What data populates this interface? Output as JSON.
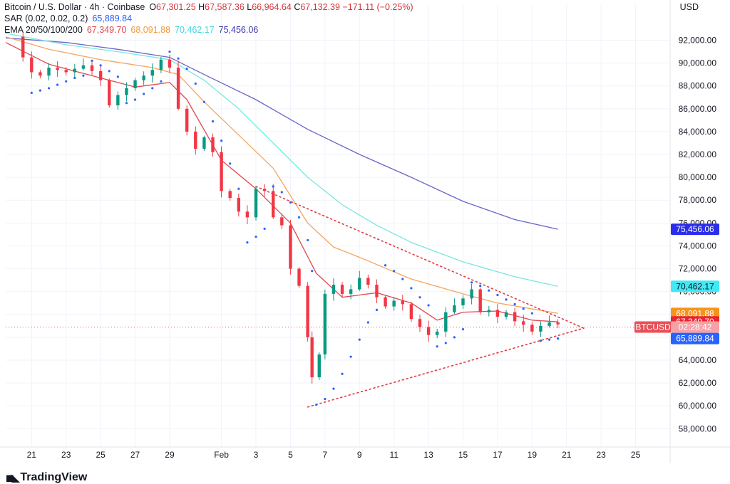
{
  "legend": {
    "title": "Bitcoin / U.S. Dollar · 4h · Coinbase",
    "o_label": "O",
    "o": "67,301.25",
    "h_label": "H",
    "h": "67,587.36",
    "l_label": "L",
    "l": "66,964.64",
    "c_label": "C",
    "c": "67,132.39",
    "change": "−171.11 (−0.25%)",
    "sar_label": "SAR (0.02, 0.02, 0.2)",
    "sar_value": "65,889.84",
    "ema_label": "EMA 20/50/100/200",
    "ema20": "67,349.70",
    "ema50": "68,091.88",
    "ema100": "70,462.17",
    "ema200": "75,456.06"
  },
  "currency": "USD",
  "brand": "TradingView",
  "colors": {
    "up": "#089981",
    "down": "#f23645",
    "sar": "#2962ff",
    "ema20": "#e0474c",
    "ema50": "#f5a55f",
    "ema100": "#78e6e0",
    "ema200": "#6a64c9",
    "triangle": "#e23b43",
    "last_price": "#e84f57"
  },
  "chart_data": {
    "type": "candlestick",
    "symbol": "BTCUSD",
    "timeframe": "4h",
    "x_axis": {
      "ticks": [
        {
          "label": "21",
          "date": "2024-01-21"
        },
        {
          "label": "23",
          "date": "2024-01-23"
        },
        {
          "label": "25",
          "date": "2024-01-25"
        },
        {
          "label": "27",
          "date": "2024-01-27"
        },
        {
          "label": "29",
          "date": "2024-01-29"
        },
        {
          "label": "Feb",
          "date": "2024-02-01"
        },
        {
          "label": "3",
          "date": "2024-02-03"
        },
        {
          "label": "5",
          "date": "2024-02-05"
        },
        {
          "label": "7",
          "date": "2024-02-07"
        },
        {
          "label": "9",
          "date": "2024-02-09"
        },
        {
          "label": "11",
          "date": "2024-02-11"
        },
        {
          "label": "13",
          "date": "2024-02-13"
        },
        {
          "label": "15",
          "date": "2024-02-15"
        },
        {
          "label": "17",
          "date": "2024-02-17"
        },
        {
          "label": "19",
          "date": "2024-02-19"
        },
        {
          "label": "21",
          "date": "2024-02-21"
        },
        {
          "label": "23",
          "date": "2024-02-23"
        },
        {
          "label": "25",
          "date": "2024-02-25"
        }
      ],
      "range": [
        "2024-01-19T12:00",
        "2024-02-27T00:00"
      ]
    },
    "y_axis": {
      "ticks": [
        "58,000.00",
        "60,000.00",
        "62,000.00",
        "64,000.00",
        "66,000.00",
        "68,000.00",
        "70,000.00",
        "72,000.00",
        "74,000.00",
        "76,000.00",
        "78,000.00",
        "80,000.00",
        "82,000.00",
        "84,000.00",
        "86,000.00",
        "88,000.00",
        "90,000.00",
        "92,000.00"
      ],
      "ylim": [
        56400,
        93900
      ]
    },
    "closes": [
      [
        "2024-01-19T16:00",
        92300
      ],
      [
        "2024-01-20T12:00",
        90500
      ],
      [
        "2024-01-21T00:00",
        89200
      ],
      [
        "2024-01-21T12:00",
        88900
      ],
      [
        "2024-01-22T00:00",
        89600
      ],
      [
        "2024-01-22T12:00",
        89400
      ],
      [
        "2024-01-23T00:00",
        89200
      ],
      [
        "2024-01-23T12:00",
        89500
      ],
      [
        "2024-01-24T00:00",
        89800
      ],
      [
        "2024-01-24T12:00",
        89300
      ],
      [
        "2024-01-25T00:00",
        88500
      ],
      [
        "2024-01-25T12:00",
        86300
      ],
      [
        "2024-01-26T00:00",
        87200
      ],
      [
        "2024-01-26T12:00",
        87800
      ],
      [
        "2024-01-27T00:00",
        88500
      ],
      [
        "2024-01-27T12:00",
        88900
      ],
      [
        "2024-01-28T00:00",
        89400
      ],
      [
        "2024-01-28T12:00",
        90300
      ],
      [
        "2024-01-29T00:00",
        89600
      ],
      [
        "2024-01-29T12:00",
        86000
      ],
      [
        "2024-01-30T00:00",
        84000
      ],
      [
        "2024-01-30T12:00",
        82500
      ],
      [
        "2024-01-31T00:00",
        83500
      ],
      [
        "2024-01-31T12:00",
        82200
      ],
      [
        "2024-02-01T00:00",
        78800
      ],
      [
        "2024-02-01T12:00",
        78200
      ],
      [
        "2024-02-02T00:00",
        77000
      ],
      [
        "2024-02-02T12:00",
        76500
      ],
      [
        "2024-02-03T00:00",
        79000
      ],
      [
        "2024-02-03T12:00",
        78800
      ],
      [
        "2024-02-04T00:00",
        76500
      ],
      [
        "2024-02-04T12:00",
        75800
      ],
      [
        "2024-02-05T00:00",
        72000
      ],
      [
        "2024-02-05T12:00",
        70500
      ],
      [
        "2024-02-06T00:00",
        66000
      ],
      [
        "2024-02-06T06:00",
        62500
      ],
      [
        "2024-02-06T16:00",
        64500
      ],
      [
        "2024-02-07T00:00",
        69800
      ],
      [
        "2024-02-07T12:00",
        70600
      ],
      [
        "2024-02-08T00:00",
        69800
      ],
      [
        "2024-02-08T12:00",
        70200
      ],
      [
        "2024-02-09T00:00",
        71200
      ],
      [
        "2024-02-09T12:00",
        70600
      ],
      [
        "2024-02-10T00:00",
        69500
      ],
      [
        "2024-02-10T12:00",
        68700
      ],
      [
        "2024-02-11T00:00",
        69200
      ],
      [
        "2024-02-11T12:00",
        68900
      ],
      [
        "2024-02-12T00:00",
        67600
      ],
      [
        "2024-02-12T12:00",
        66900
      ],
      [
        "2024-02-13T00:00",
        66200
      ],
      [
        "2024-02-13T12:00",
        66500
      ],
      [
        "2024-02-14T00:00",
        68200
      ],
      [
        "2024-02-14T12:00",
        68800
      ],
      [
        "2024-02-15T00:00",
        69400
      ],
      [
        "2024-02-15T12:00",
        70200
      ],
      [
        "2024-02-16T00:00",
        68200
      ],
      [
        "2024-02-16T12:00",
        68400
      ],
      [
        "2024-02-17T00:00",
        67800
      ],
      [
        "2024-02-17T12:00",
        68200
      ],
      [
        "2024-02-18T00:00",
        67400
      ],
      [
        "2024-02-18T12:00",
        67100
      ],
      [
        "2024-02-19T00:00",
        66500
      ],
      [
        "2024-02-19T12:00",
        67000
      ],
      [
        "2024-02-20T00:00",
        67300
      ],
      [
        "2024-02-20T12:00",
        67132
      ]
    ],
    "ema20": [
      [
        "2024-01-19T12:00",
        91800
      ],
      [
        "2024-01-22T00:00",
        89900
      ],
      [
        "2024-01-25T00:00",
        88700
      ],
      [
        "2024-01-27T00:00",
        87900
      ],
      [
        "2024-01-29T00:00",
        88300
      ],
      [
        "2024-01-30T00:00",
        86800
      ],
      [
        "2024-02-01T00:00",
        81500
      ],
      [
        "2024-02-03T00:00",
        79000
      ],
      [
        "2024-02-05T00:00",
        76000
      ],
      [
        "2024-02-06T12:00",
        71600
      ],
      [
        "2024-02-08T00:00",
        69500
      ],
      [
        "2024-02-10T00:00",
        69900
      ],
      [
        "2024-02-12T00:00",
        69000
      ],
      [
        "2024-02-13T12:00",
        67500
      ],
      [
        "2024-02-15T00:00",
        68200
      ],
      [
        "2024-02-17T00:00",
        68300
      ],
      [
        "2024-02-19T00:00",
        67500
      ],
      [
        "2024-02-20T12:00",
        67350
      ]
    ],
    "ema50": [
      [
        "2024-01-19T12:00",
        92300
      ],
      [
        "2024-01-22T00:00",
        91200
      ],
      [
        "2024-01-25T00:00",
        90300
      ],
      [
        "2024-01-28T00:00",
        89600
      ],
      [
        "2024-01-29T12:00",
        89000
      ],
      [
        "2024-01-31T00:00",
        86600
      ],
      [
        "2024-02-02T00:00",
        83700
      ],
      [
        "2024-02-04T00:00",
        80800
      ],
      [
        "2024-02-06T00:00",
        76000
      ],
      [
        "2024-02-07T12:00",
        73900
      ],
      [
        "2024-02-09T00:00",
        73000
      ],
      [
        "2024-02-12T00:00",
        71100
      ],
      [
        "2024-02-15T00:00",
        69800
      ],
      [
        "2024-02-17T00:00",
        69000
      ],
      [
        "2024-02-20T12:00",
        68100
      ]
    ],
    "ema100": [
      [
        "2024-01-19T12:00",
        92600
      ],
      [
        "2024-01-23T00:00",
        91600
      ],
      [
        "2024-01-26T00:00",
        91000
      ],
      [
        "2024-01-29T00:00",
        90300
      ],
      [
        "2024-01-31T00:00",
        88500
      ],
      [
        "2024-02-02T00:00",
        86000
      ],
      [
        "2024-02-04T00:00",
        83000
      ],
      [
        "2024-02-06T00:00",
        80000
      ],
      [
        "2024-02-08T00:00",
        77600
      ],
      [
        "2024-02-10T00:00",
        75800
      ],
      [
        "2024-02-12T00:00",
        74300
      ],
      [
        "2024-02-15T00:00",
        72600
      ],
      [
        "2024-02-18T00:00",
        71300
      ],
      [
        "2024-02-20T12:00",
        70460
      ]
    ],
    "ema200": [
      [
        "2024-01-19T12:00",
        92200
      ],
      [
        "2024-01-23T00:00",
        91800
      ],
      [
        "2024-01-26T00:00",
        91200
      ],
      [
        "2024-01-29T00:00",
        90500
      ],
      [
        "2024-01-31T00:00",
        89000
      ],
      [
        "2024-02-03T00:00",
        86800
      ],
      [
        "2024-02-06T00:00",
        84200
      ],
      [
        "2024-02-09T00:00",
        82000
      ],
      [
        "2024-02-12T00:00",
        80000
      ],
      [
        "2024-02-15T00:00",
        77900
      ],
      [
        "2024-02-18T00:00",
        76300
      ],
      [
        "2024-02-20T12:00",
        75456
      ]
    ],
    "sar": [
      [
        "2024-01-21T00:00",
        87400
      ],
      [
        "2024-01-21T12:00",
        87600
      ],
      [
        "2024-01-22T00:00",
        87800
      ],
      [
        "2024-01-22T12:00",
        88100
      ],
      [
        "2024-01-23T00:00",
        88400
      ],
      [
        "2024-01-23T12:00",
        88700
      ],
      [
        "2024-01-24T00:00",
        88900
      ],
      [
        "2024-01-24T12:00",
        90200
      ],
      [
        "2024-01-25T00:00",
        89800
      ],
      [
        "2024-01-25T12:00",
        89300
      ],
      [
        "2024-01-26T00:00",
        88800
      ],
      [
        "2024-01-26T12:00",
        86500
      ],
      [
        "2024-01-27T00:00",
        86800
      ],
      [
        "2024-01-27T12:00",
        87300
      ],
      [
        "2024-01-28T00:00",
        87800
      ],
      [
        "2024-01-28T12:00",
        88400
      ],
      [
        "2024-01-29T00:00",
        91000
      ],
      [
        "2024-01-29T12:00",
        90400
      ],
      [
        "2024-01-30T00:00",
        89500
      ],
      [
        "2024-01-30T12:00",
        88200
      ],
      [
        "2024-01-31T00:00",
        86600
      ],
      [
        "2024-01-31T12:00",
        84900
      ],
      [
        "2024-02-01T00:00",
        83200
      ],
      [
        "2024-02-01T12:00",
        81200
      ],
      [
        "2024-02-02T00:00",
        79000
      ],
      [
        "2024-02-02T12:00",
        74300
      ],
      [
        "2024-02-03T00:00",
        74800
      ],
      [
        "2024-02-03T12:00",
        75500
      ],
      [
        "2024-02-04T00:00",
        79200
      ],
      [
        "2024-02-04T12:00",
        78700
      ],
      [
        "2024-02-05T00:00",
        77800
      ],
      [
        "2024-02-05T12:00",
        76500
      ],
      [
        "2024-02-06T00:00",
        74500
      ],
      [
        "2024-02-06T06:00",
        71800
      ],
      [
        "2024-02-06T12:00",
        60100
      ],
      [
        "2024-02-07T00:00",
        60600
      ],
      [
        "2024-02-07T12:00",
        61500
      ],
      [
        "2024-02-08T00:00",
        62800
      ],
      [
        "2024-02-08T12:00",
        64300
      ],
      [
        "2024-02-09T00:00",
        65800
      ],
      [
        "2024-02-09T12:00",
        67300
      ],
      [
        "2024-02-10T00:00",
        68400
      ],
      [
        "2024-02-10T12:00",
        72300
      ],
      [
        "2024-02-11T00:00",
        71800
      ],
      [
        "2024-02-11T12:00",
        71100
      ],
      [
        "2024-02-12T00:00",
        70300
      ],
      [
        "2024-02-12T12:00",
        69500
      ],
      [
        "2024-02-13T00:00",
        68800
      ],
      [
        "2024-02-13T12:00",
        65200
      ],
      [
        "2024-02-14T00:00",
        65500
      ],
      [
        "2024-02-14T12:00",
        66000
      ],
      [
        "2024-02-15T00:00",
        66700
      ],
      [
        "2024-02-15T12:00",
        70800
      ],
      [
        "2024-02-16T00:00",
        70500
      ],
      [
        "2024-02-16T12:00",
        70100
      ],
      [
        "2024-02-17T00:00",
        69700
      ],
      [
        "2024-02-17T12:00",
        69300
      ],
      [
        "2024-02-18T00:00",
        68900
      ],
      [
        "2024-02-18T12:00",
        68500
      ],
      [
        "2024-02-19T00:00",
        68100
      ],
      [
        "2024-02-19T12:00",
        65700
      ],
      [
        "2024-02-20T00:00",
        65800
      ],
      [
        "2024-02-20T12:00",
        65890
      ]
    ],
    "triangle": {
      "upper": [
        [
          "2024-02-03T00:00",
          79200
        ],
        [
          "2024-02-22T00:00",
          66800
        ]
      ],
      "lower": [
        [
          "2024-02-06T00:00",
          59900
        ],
        [
          "2024-02-22T00:00",
          66800
        ]
      ]
    },
    "price_labels": [
      {
        "text": "75,456.06",
        "value": 75456.06,
        "bg": "#2a2eec",
        "fg": "#ffffff"
      },
      {
        "text": "70,462.17",
        "value": 70462.17,
        "bg": "#42e8f4",
        "fg": "#131722"
      },
      {
        "text": "68,091.88",
        "value": 68091.88,
        "bg": "#f7931a",
        "fg": "#ffffff"
      },
      {
        "text": "67,349.70",
        "value": 67349.7,
        "bg": "#e8262f",
        "fg": "#ffffff"
      },
      {
        "text": "65,889.84",
        "value": 65889.84,
        "bg": "#2962ff",
        "fg": "#ffffff"
      }
    ],
    "last_price": {
      "symbol": "BTCUSD",
      "countdown": "02:28:42",
      "value": 66900
    }
  }
}
